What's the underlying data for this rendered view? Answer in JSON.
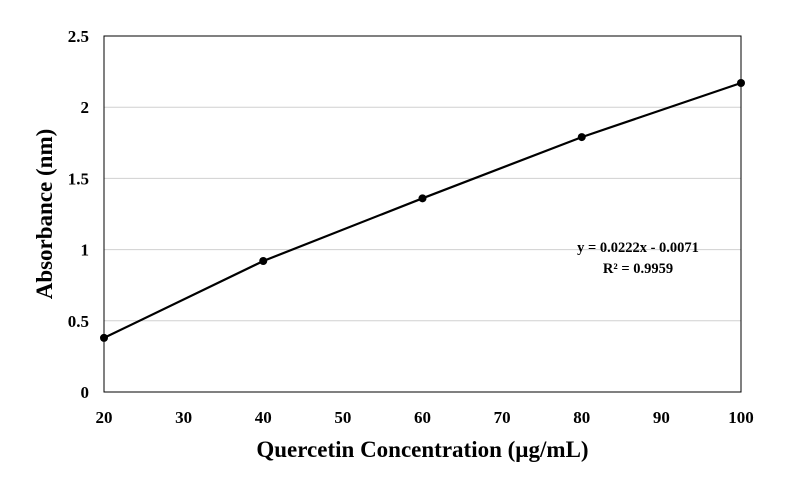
{
  "chart_data": {
    "type": "line",
    "title": "",
    "xlabel": "Quercetin Concentration (µg/mL)",
    "ylabel": "Absorbance (nm)",
    "xlim": [
      20,
      100
    ],
    "ylim": [
      0,
      2.5
    ],
    "x_ticks": [
      "20",
      "30",
      "40",
      "50",
      "60",
      "70",
      "80",
      "90",
      "100"
    ],
    "y_ticks": [
      "0",
      "0.5",
      "1",
      "1.5",
      "2",
      "2.5"
    ],
    "grid": "horizontal",
    "legend": "none",
    "series": [
      {
        "x": [
          20,
          40,
          60,
          80,
          100
        ],
        "y": [
          0.38,
          0.92,
          1.36,
          1.79,
          2.17
        ],
        "color": "#000000",
        "marker": "circle"
      }
    ],
    "annotations": [
      "y = 0.0222x - 0.0071",
      "R² = 0.9959"
    ]
  }
}
